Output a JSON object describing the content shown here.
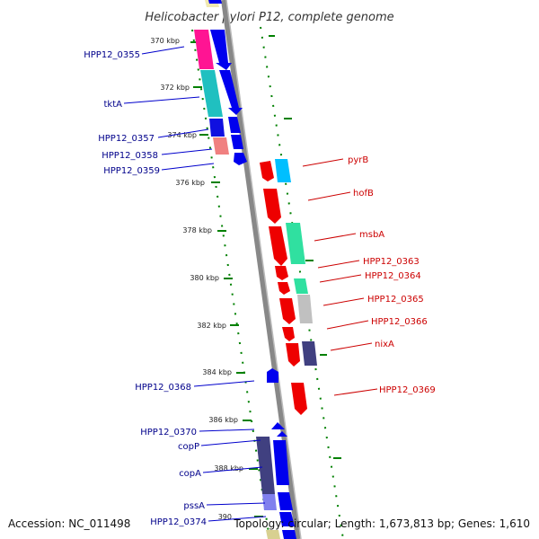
{
  "title": "Helicobacter pylori P12, complete genome",
  "footer": {
    "accession": "Accession: NC_011498",
    "topology": "Topology: circular; Length: 1,673,813 bp; Genes: 1,610"
  },
  "kbp_labels": [
    "370 kbp",
    "372 kbp",
    "374 kbp",
    "376 kbp",
    "378 kbp",
    "380 kbp",
    "382 kbp",
    "384 kbp",
    "386 kbp",
    "388 kbp",
    "390"
  ],
  "genes_left": [
    "HPP12_0355",
    "tktA",
    "HPP12_0357",
    "HPP12_0358",
    "HPP12_0359",
    "HPP12_0368",
    "HPP12_0370",
    "copP",
    "copA",
    "pssA",
    "HPP12_0374"
  ],
  "genes_right": [
    "pyrB",
    "hofB",
    "msbA",
    "HPP12_0363",
    "HPP12_0364",
    "HPP12_0365",
    "HPP12_0366",
    "nixA",
    "HPP12_0369"
  ],
  "colors": {
    "strand_plus": "#0000ee",
    "strand_minus": "#ee0000",
    "backbone": "#888888",
    "tick": "#008000"
  }
}
